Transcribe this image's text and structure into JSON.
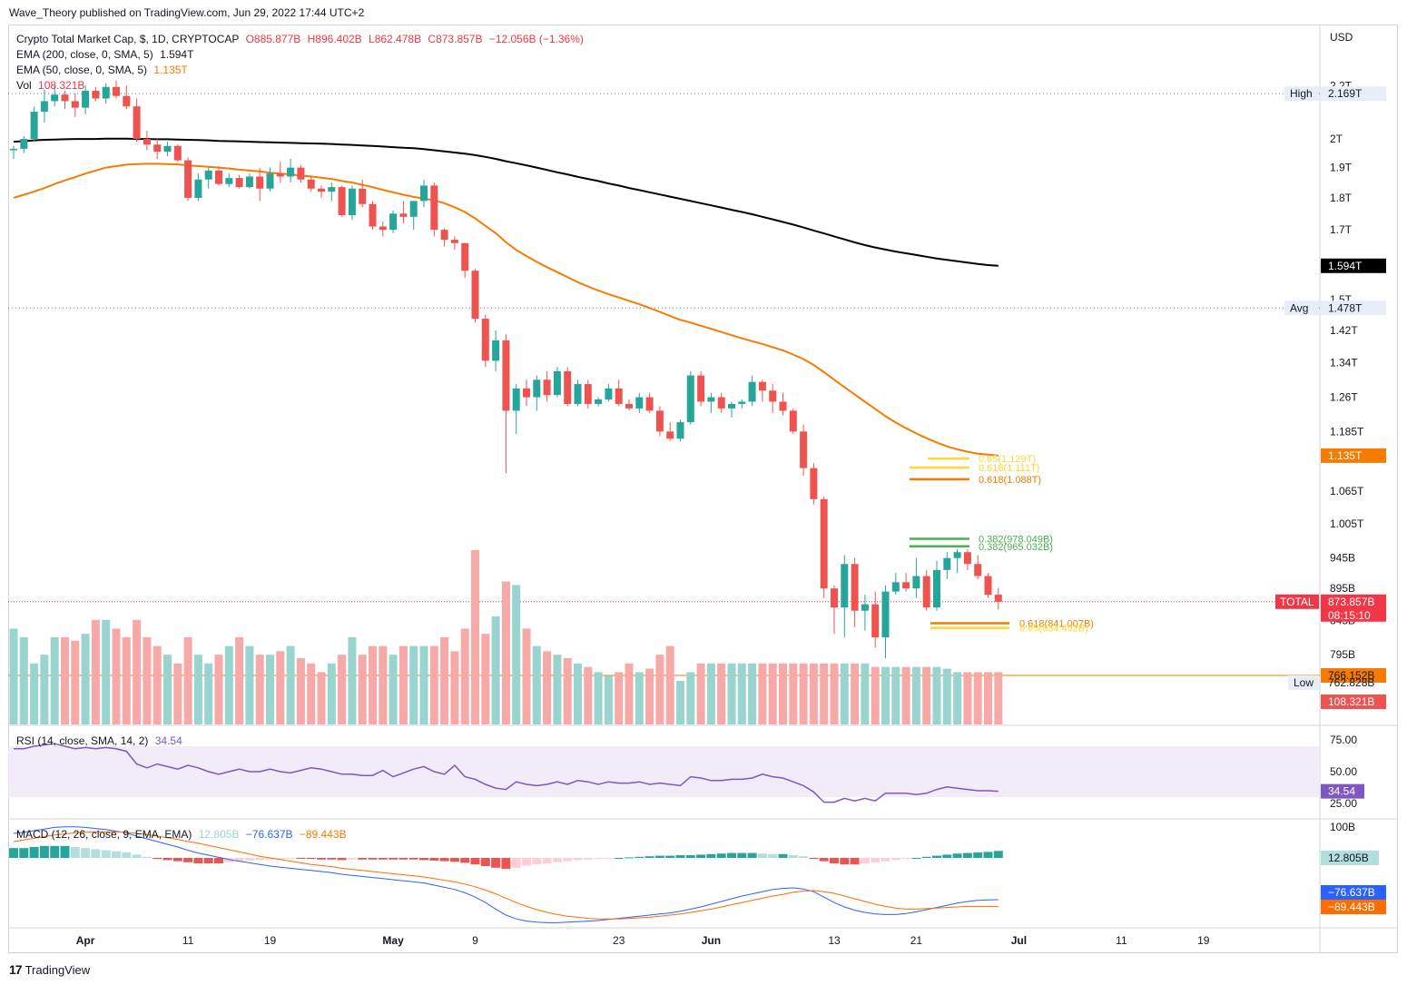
{
  "publisher_line": "Wave_Theory published on TradingView.com, Jun 29, 2022 17:44 UTC+2",
  "brand": "TradingView",
  "symbol_line": {
    "title": "Crypto Total Market Cap, $, 1D, CRYPTOCAP",
    "open": "O885.877B",
    "high": "H896.402B",
    "low": "L862.478B",
    "close": "C873.857B",
    "change": "−12.056B (−1.36%)"
  },
  "ema200": {
    "label": "EMA (200, close, 0, SMA, 5)",
    "value": "1.594T"
  },
  "ema50": {
    "label": "EMA (50, close, 0, SMA, 5)",
    "value": "1.135T"
  },
  "vol": {
    "label": "Vol",
    "value": "108.321B"
  },
  "rsi": {
    "label": "RSI (14, close, SMA, 14, 2)",
    "value": "34.54"
  },
  "macd": {
    "label": "MACD (12, 26, close, 9, EMA, EMA)",
    "hist": "12.805B",
    "macd": "−76.637B",
    "signal": "−89.443B"
  },
  "currency": "USD",
  "colors": {
    "up": "#26a69a",
    "down": "#ef5350",
    "ema200": "#000000",
    "ema50": "#f57c00",
    "rsi": "#7e57c2",
    "macd": "#2962ff",
    "signal": "#ff6d00"
  },
  "chart_data": {
    "type": "candlestick",
    "dates": [
      "2022-03-25",
      "2022-03-26",
      "2022-03-27",
      "2022-03-28",
      "2022-03-29",
      "2022-03-30",
      "2022-03-31",
      "2022-04-01",
      "2022-04-02",
      "2022-04-03",
      "2022-04-04",
      "2022-04-05",
      "2022-04-06",
      "2022-04-07",
      "2022-04-08",
      "2022-04-09",
      "2022-04-10",
      "2022-04-11",
      "2022-04-12",
      "2022-04-13",
      "2022-04-14",
      "2022-04-15",
      "2022-04-16",
      "2022-04-17",
      "2022-04-18",
      "2022-04-19",
      "2022-04-20",
      "2022-04-21",
      "2022-04-22",
      "2022-04-23",
      "2022-04-24",
      "2022-04-25",
      "2022-04-26",
      "2022-04-27",
      "2022-04-28",
      "2022-04-29",
      "2022-04-30",
      "2022-05-01",
      "2022-05-02",
      "2022-05-03",
      "2022-05-04",
      "2022-05-05",
      "2022-05-06",
      "2022-05-07",
      "2022-05-08",
      "2022-05-09",
      "2022-05-10",
      "2022-05-11",
      "2022-05-12",
      "2022-05-13",
      "2022-05-14",
      "2022-05-15",
      "2022-05-16",
      "2022-05-17",
      "2022-05-18",
      "2022-05-19",
      "2022-05-20",
      "2022-05-21",
      "2022-05-22",
      "2022-05-23",
      "2022-05-24",
      "2022-05-25",
      "2022-05-26",
      "2022-05-27",
      "2022-05-28",
      "2022-05-29",
      "2022-05-30",
      "2022-05-31",
      "2022-06-01",
      "2022-06-02",
      "2022-06-03",
      "2022-06-04",
      "2022-06-05",
      "2022-06-06",
      "2022-06-07",
      "2022-06-08",
      "2022-06-09",
      "2022-06-10",
      "2022-06-11",
      "2022-06-12",
      "2022-06-13",
      "2022-06-14",
      "2022-06-15",
      "2022-06-16",
      "2022-06-17",
      "2022-06-18",
      "2022-06-19",
      "2022-06-20",
      "2022-06-21",
      "2022-06-22",
      "2022-06-23",
      "2022-06-24",
      "2022-06-25",
      "2022-06-26",
      "2022-06-27",
      "2022-06-28",
      "2022-06-29"
    ],
    "ohlc": [
      [
        1960,
        1975,
        1930,
        1965
      ],
      [
        1965,
        2010,
        1950,
        2000
      ],
      [
        2000,
        2120,
        1990,
        2100
      ],
      [
        2100,
        2185,
        2060,
        2140
      ],
      [
        2140,
        2200,
        2120,
        2165
      ],
      [
        2165,
        2180,
        2110,
        2140
      ],
      [
        2140,
        2170,
        2080,
        2115
      ],
      [
        2115,
        2200,
        2090,
        2180
      ],
      [
        2180,
        2195,
        2140,
        2150
      ],
      [
        2150,
        2210,
        2130,
        2195
      ],
      [
        2195,
        2220,
        2150,
        2160
      ],
      [
        2160,
        2200,
        2110,
        2120
      ],
      [
        2120,
        2150,
        1990,
        2000
      ],
      [
        2000,
        2030,
        1960,
        1980
      ],
      [
        1980,
        2000,
        1930,
        1955
      ],
      [
        1955,
        1990,
        1940,
        1975
      ],
      [
        1975,
        1980,
        1920,
        1925
      ],
      [
        1925,
        1935,
        1790,
        1800
      ],
      [
        1800,
        1880,
        1790,
        1860
      ],
      [
        1860,
        1900,
        1830,
        1890
      ],
      [
        1890,
        1905,
        1840,
        1845
      ],
      [
        1845,
        1880,
        1835,
        1865
      ],
      [
        1865,
        1875,
        1830,
        1835
      ],
      [
        1835,
        1880,
        1830,
        1870
      ],
      [
        1870,
        1900,
        1790,
        1830
      ],
      [
        1830,
        1900,
        1820,
        1880
      ],
      [
        1880,
        1920,
        1850,
        1870
      ],
      [
        1870,
        1930,
        1850,
        1900
      ],
      [
        1900,
        1910,
        1850,
        1860
      ],
      [
        1860,
        1870,
        1820,
        1830
      ],
      [
        1830,
        1840,
        1800,
        1820
      ],
      [
        1820,
        1850,
        1790,
        1835
      ],
      [
        1835,
        1840,
        1740,
        1745
      ],
      [
        1745,
        1840,
        1730,
        1830
      ],
      [
        1830,
        1860,
        1770,
        1780
      ],
      [
        1780,
        1790,
        1700,
        1710
      ],
      [
        1710,
        1725,
        1680,
        1700
      ],
      [
        1700,
        1760,
        1690,
        1750
      ],
      [
        1750,
        1790,
        1720,
        1740
      ],
      [
        1740,
        1790,
        1700,
        1790
      ],
      [
        1790,
        1860,
        1770,
        1840
      ],
      [
        1840,
        1850,
        1680,
        1700
      ],
      [
        1700,
        1705,
        1650,
        1670
      ],
      [
        1670,
        1680,
        1640,
        1660
      ],
      [
        1660,
        1660,
        1560,
        1580
      ],
      [
        1580,
        1585,
        1440,
        1450
      ],
      [
        1450,
        1460,
        1330,
        1345
      ],
      [
        1345,
        1420,
        1320,
        1395
      ],
      [
        1395,
        1410,
        1100,
        1230
      ],
      [
        1230,
        1290,
        1180,
        1280
      ],
      [
        1280,
        1300,
        1240,
        1260
      ],
      [
        1260,
        1310,
        1230,
        1300
      ],
      [
        1300,
        1320,
        1250,
        1265
      ],
      [
        1265,
        1330,
        1260,
        1320
      ],
      [
        1320,
        1330,
        1240,
        1245
      ],
      [
        1245,
        1300,
        1240,
        1290
      ],
      [
        1290,
        1300,
        1235,
        1245
      ],
      [
        1245,
        1260,
        1240,
        1255
      ],
      [
        1255,
        1290,
        1250,
        1280
      ],
      [
        1280,
        1300,
        1240,
        1245
      ],
      [
        1245,
        1255,
        1230,
        1235
      ],
      [
        1235,
        1270,
        1225,
        1260
      ],
      [
        1260,
        1270,
        1225,
        1230
      ],
      [
        1230,
        1240,
        1175,
        1185
      ],
      [
        1185,
        1205,
        1165,
        1170
      ],
      [
        1170,
        1210,
        1165,
        1205
      ],
      [
        1205,
        1320,
        1200,
        1310
      ],
      [
        1310,
        1320,
        1240,
        1250
      ],
      [
        1250,
        1270,
        1225,
        1260
      ],
      [
        1260,
        1270,
        1225,
        1235
      ],
      [
        1235,
        1250,
        1215,
        1245
      ],
      [
        1245,
        1255,
        1235,
        1250
      ],
      [
        1250,
        1310,
        1240,
        1295
      ],
      [
        1295,
        1300,
        1250,
        1275
      ],
      [
        1275,
        1290,
        1225,
        1250
      ],
      [
        1250,
        1270,
        1220,
        1230
      ],
      [
        1230,
        1235,
        1180,
        1185
      ],
      [
        1185,
        1200,
        1095,
        1110
      ],
      [
        1110,
        1120,
        1040,
        1050
      ],
      [
        1050,
        1055,
        880,
        895
      ],
      [
        895,
        900,
        825,
        865
      ],
      [
        865,
        950,
        820,
        935
      ],
      [
        935,
        945,
        835,
        860
      ],
      [
        860,
        885,
        830,
        870
      ],
      [
        870,
        890,
        805,
        820
      ],
      [
        820,
        900,
        790,
        890
      ],
      [
        890,
        920,
        885,
        905
      ],
      [
        905,
        920,
        890,
        895
      ],
      [
        895,
        945,
        880,
        915
      ],
      [
        915,
        925,
        860,
        865
      ],
      [
        865,
        940,
        860,
        925
      ],
      [
        925,
        955,
        910,
        945
      ],
      [
        945,
        960,
        920,
        955
      ],
      [
        955,
        960,
        925,
        935
      ],
      [
        935,
        950,
        910,
        915
      ],
      [
        915,
        920,
        880,
        885
      ],
      [
        885,
        896,
        862,
        874
      ]
    ],
    "volume_relative": [
      0.55,
      0.5,
      0.35,
      0.4,
      0.5,
      0.5,
      0.48,
      0.52,
      0.6,
      0.6,
      0.55,
      0.5,
      0.6,
      0.5,
      0.45,
      0.4,
      0.35,
      0.5,
      0.4,
      0.35,
      0.4,
      0.45,
      0.5,
      0.45,
      0.4,
      0.4,
      0.42,
      0.45,
      0.38,
      0.35,
      0.3,
      0.35,
      0.4,
      0.5,
      0.4,
      0.45,
      0.45,
      0.4,
      0.45,
      0.45,
      0.45,
      0.45,
      0.5,
      0.42,
      0.55,
      1.0,
      0.52,
      0.62,
      0.82,
      0.8,
      0.55,
      0.45,
      0.42,
      0.4,
      0.38,
      0.35,
      0.33,
      0.3,
      0.28,
      0.3,
      0.35,
      0.3,
      0.32,
      0.4,
      0.45,
      0.25,
      0.3,
      0.35,
      0.35,
      0.35,
      0.35,
      0.35,
      0.35,
      0.35,
      0.35,
      0.35,
      0.35,
      0.35,
      0.35,
      0.35,
      0.35,
      0.35,
      0.35,
      0.35,
      0.33,
      0.33,
      0.33,
      0.33,
      0.33,
      0.33,
      0.33,
      0.32,
      0.3,
      0.3,
      0.3,
      0.3,
      0.3
    ],
    "ema200": [
      1990,
      1992,
      1995,
      1997,
      1998,
      1999,
      2000,
      2000,
      2000,
      2001,
      2001,
      2001,
      2000,
      2000,
      1999,
      1999,
      1998,
      1997,
      1996,
      1995,
      1993,
      1992,
      1991,
      1990,
      1989,
      1988,
      1987,
      1986,
      1985,
      1984,
      1983,
      1982,
      1980,
      1979,
      1977,
      1975,
      1973,
      1971,
      1969,
      1967,
      1964,
      1960,
      1956,
      1952,
      1948,
      1943,
      1937,
      1930,
      1922,
      1915,
      1908,
      1900,
      1892,
      1884,
      1877,
      1869,
      1862,
      1855,
      1847,
      1840,
      1832,
      1825,
      1818,
      1811,
      1804,
      1797,
      1790,
      1783,
      1776,
      1769,
      1762,
      1755,
      1748,
      1740,
      1732,
      1724,
      1716,
      1707,
      1698,
      1689,
      1680,
      1671,
      1662,
      1654,
      1647,
      1641,
      1635,
      1630,
      1625,
      1620,
      1615,
      1611,
      1607,
      1603,
      1599,
      1596,
      1594
    ],
    "ema50": [
      1800,
      1810,
      1820,
      1832,
      1845,
      1857,
      1868,
      1880,
      1890,
      1900,
      1905,
      1910,
      1912,
      1913,
      1913,
      1912,
      1911,
      1908,
      1905,
      1903,
      1900,
      1897,
      1893,
      1890,
      1887,
      1883,
      1880,
      1877,
      1873,
      1870,
      1866,
      1862,
      1855,
      1850,
      1842,
      1835,
      1826,
      1818,
      1810,
      1803,
      1798,
      1792,
      1783,
      1770,
      1755,
      1735,
      1712,
      1690,
      1662,
      1640,
      1622,
      1605,
      1590,
      1576,
      1562,
      1548,
      1536,
      1525,
      1515,
      1506,
      1497,
      1488,
      1478,
      1468,
      1457,
      1447,
      1440,
      1432,
      1424,
      1416,
      1408,
      1400,
      1393,
      1386,
      1378,
      1370,
      1360,
      1349,
      1335,
      1318,
      1300,
      1283,
      1266,
      1250,
      1234,
      1218,
      1204,
      1192,
      1181,
      1171,
      1162,
      1154,
      1148,
      1143,
      1139,
      1137,
      1135
    ],
    "rsi": [
      68,
      68,
      70,
      71,
      72,
      70,
      68,
      69,
      68,
      69,
      68,
      66,
      56,
      53,
      56,
      54,
      52,
      55,
      53,
      50,
      48,
      50,
      52,
      50,
      50,
      52,
      50,
      49,
      51,
      53,
      52,
      50,
      48,
      48,
      47,
      47,
      51,
      46,
      49,
      52,
      54,
      50,
      48,
      55,
      46,
      44,
      40,
      37,
      36,
      42,
      40,
      39,
      40,
      42,
      40,
      43,
      42,
      40,
      42,
      41,
      41,
      42,
      40,
      41,
      40,
      39,
      46,
      45,
      43,
      43,
      44,
      44,
      45,
      48,
      46,
      45,
      42,
      39,
      34,
      26,
      26,
      29,
      27,
      29,
      27,
      33,
      33,
      33,
      32,
      33,
      36,
      38,
      37,
      36,
      35,
      35,
      34.54
    ],
    "macd_hist": [
      18,
      18,
      20,
      22,
      22,
      22,
      20,
      18,
      16,
      14,
      12,
      10,
      6,
      2,
      -2,
      -4,
      -6,
      -8,
      -10,
      -10,
      -10,
      -8,
      -6,
      -5,
      -4,
      -3,
      -2,
      -1,
      -1,
      -2,
      -3,
      -3,
      -4,
      -3,
      -3,
      -3,
      -3,
      -3,
      -3,
      -3,
      -4,
      -5,
      -6,
      -7,
      -9,
      -12,
      -15,
      -18,
      -20,
      -18,
      -14,
      -12,
      -10,
      -8,
      -6,
      -4,
      -3,
      -2,
      -1,
      0,
      1,
      2,
      3,
      4,
      4,
      5,
      5,
      6,
      7,
      8,
      9,
      9,
      9,
      8,
      7,
      7,
      5,
      3,
      -2,
      -6,
      -10,
      -12,
      -12,
      -10,
      -8,
      -6,
      -4,
      -2,
      0,
      2,
      4,
      6,
      8,
      9,
      10,
      11,
      12.8
    ],
    "macd": [
      45,
      47,
      50,
      53,
      56,
      57,
      57,
      56,
      54,
      52,
      49,
      46,
      40,
      35,
      30,
      25,
      20,
      14,
      9,
      5,
      1,
      -3,
      -6,
      -9,
      -12,
      -15,
      -17,
      -19,
      -21,
      -23,
      -25,
      -27,
      -30,
      -32,
      -34,
      -36,
      -38,
      -40,
      -42,
      -44,
      -46,
      -50,
      -54,
      -58,
      -64,
      -72,
      -82,
      -94,
      -105,
      -112,
      -116,
      -118,
      -119,
      -119,
      -118,
      -117,
      -116,
      -115,
      -113,
      -111,
      -109,
      -107,
      -105,
      -103,
      -101,
      -98,
      -94,
      -90,
      -85,
      -80,
      -75,
      -70,
      -66,
      -62,
      -58,
      -56,
      -55,
      -57,
      -62,
      -72,
      -82,
      -90,
      -96,
      -100,
      -103,
      -104,
      -104,
      -102,
      -99,
      -95,
      -91,
      -87,
      -83,
      -80,
      -78,
      -77,
      -76.6
    ],
    "signal": [
      30,
      33,
      36,
      39,
      42,
      44,
      46,
      47,
      48,
      48,
      48,
      47,
      45,
      43,
      40,
      37,
      34,
      30,
      27,
      23,
      19,
      15,
      11,
      7,
      3,
      0,
      -3,
      -6,
      -9,
      -12,
      -14,
      -16,
      -19,
      -21,
      -23,
      -25,
      -27,
      -29,
      -31,
      -33,
      -35,
      -38,
      -41,
      -44,
      -48,
      -53,
      -59,
      -66,
      -74,
      -82,
      -89,
      -95,
      -100,
      -104,
      -107,
      -109,
      -111,
      -112,
      -112,
      -112,
      -111,
      -110,
      -109,
      -107,
      -105,
      -103,
      -100,
      -97,
      -94,
      -90,
      -86,
      -82,
      -78,
      -74,
      -70,
      -67,
      -63,
      -61,
      -60,
      -62,
      -65,
      -70,
      -75,
      -80,
      -85,
      -89,
      -92,
      -94,
      -94,
      -93,
      -92,
      -91,
      -90,
      -89,
      -89,
      -89,
      -89.4
    ],
    "price_axis_labels": [
      "2.2T",
      "2T",
      "1.9T",
      "1.8T",
      "1.7T",
      "1.5T",
      "1.42T",
      "1.34T",
      "1.26T",
      "1.185T",
      "1.065T",
      "1.005T",
      "945B",
      "895B",
      "845B",
      "795B"
    ],
    "x_axis_labels": [
      "Apr",
      "11",
      "19",
      "May",
      "9",
      "23",
      "Jun",
      "13",
      "21",
      "Jul",
      "11",
      "19"
    ],
    "rsi_axis_labels": [
      "75.00",
      "50.00",
      "25.00"
    ],
    "macd_axis_labels": [
      "100B"
    ],
    "price_tags": {
      "high": {
        "label": "High",
        "value": "2.169T"
      },
      "avg": {
        "label": "Avg",
        "value": "1.478T"
      },
      "ema200": "1.594T",
      "ema50": "1.135T",
      "total": {
        "label": "TOTAL",
        "value": "873.857B",
        "countdown": "08:15:10"
      },
      "support": "766.152B",
      "low": {
        "label": "Low",
        "value": "762.828B"
      },
      "vol": "108.321B",
      "rsi": "34.54",
      "macd_hist": "12.805B",
      "macd": "−76.637B",
      "signal": "−89.443B"
    },
    "fib_levels": [
      {
        "label": "0.65(1.129T)",
        "value": 1129,
        "color": "#fdd835"
      },
      {
        "label": "0.618(1.111T)",
        "value": 1111,
        "color": "#fdd835"
      },
      {
        "label": "0.618(1.088T)",
        "value": 1088,
        "color": "#f57c00"
      },
      {
        "label": "0.382(978.049B)",
        "value": 978,
        "color": "#4caf50"
      },
      {
        "label": "0.382(965.032B)",
        "value": 965,
        "color": "#4caf50"
      },
      {
        "label": "0.618(841.007B)",
        "value": 841,
        "color": "#f57c00"
      },
      {
        "label": "0.65(834.492B)",
        "value": 834,
        "color": "#fdd835"
      }
    ],
    "reference_lines": {
      "high": 2169,
      "avg": 1478,
      "support": 766,
      "current": 874
    }
  }
}
